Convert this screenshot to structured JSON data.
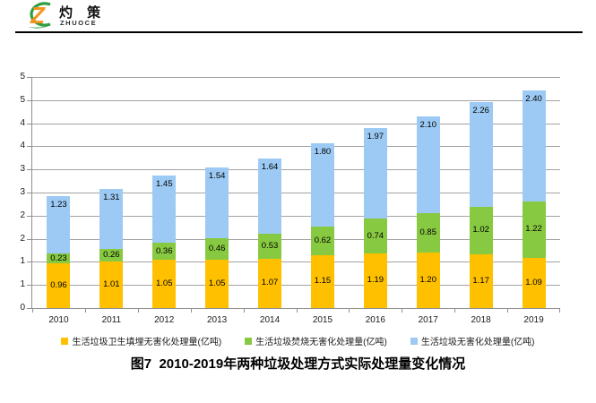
{
  "logo": {
    "brand_cn": "灼 策",
    "brand_en": "ZHUOCE",
    "mark_letter": "Z"
  },
  "caption": "图7  2010-2019年两种垃圾处理方式实际处理量变化情况",
  "colors": {
    "landfill_orange": "#FFC000",
    "incineration_green": "#87C940",
    "total_blue": "#9CCAF4",
    "gridline_gray": "#a2a2a2",
    "logo_green": "#2f9e41",
    "logo_orange": "#f7941d"
  },
  "chart_data": {
    "type": "bar",
    "stacked": true,
    "title": "",
    "xlabel": "",
    "ylabel": "",
    "grid": true,
    "legend_position": "bottom",
    "categories": [
      "2010",
      "2011",
      "2012",
      "2013",
      "2014",
      "2015",
      "2016",
      "2017",
      "2018",
      "2019"
    ],
    "series": [
      {
        "name": "生活垃圾卫生填埋无害化处理量(亿吨)",
        "color": "#FFC000",
        "label_position": "center",
        "values": [
          0.96,
          1.01,
          1.05,
          1.05,
          1.07,
          1.15,
          1.19,
          1.2,
          1.17,
          1.09
        ]
      },
      {
        "name": "生活垃圾焚烧无害化处理量(亿吨)",
        "color": "#87C940",
        "label_position": "center",
        "values": [
          0.23,
          0.26,
          0.36,
          0.46,
          0.53,
          0.62,
          0.74,
          0.85,
          1.02,
          1.22
        ]
      },
      {
        "name": "生活垃圾无害化处理量(亿吨)",
        "color": "#9CCAF4",
        "label_position": "inside_end",
        "values": [
          1.23,
          1.31,
          1.45,
          1.54,
          1.64,
          1.8,
          1.97,
          2.1,
          2.26,
          2.4
        ]
      }
    ],
    "ylim": [
      0,
      5
    ],
    "ytick_step": 0.5,
    "ytick_labels": [
      "0",
      "1",
      "1",
      "2",
      "2",
      "3",
      "3",
      "4",
      "4",
      "5",
      "5"
    ],
    "value_format_decimals": 2
  }
}
